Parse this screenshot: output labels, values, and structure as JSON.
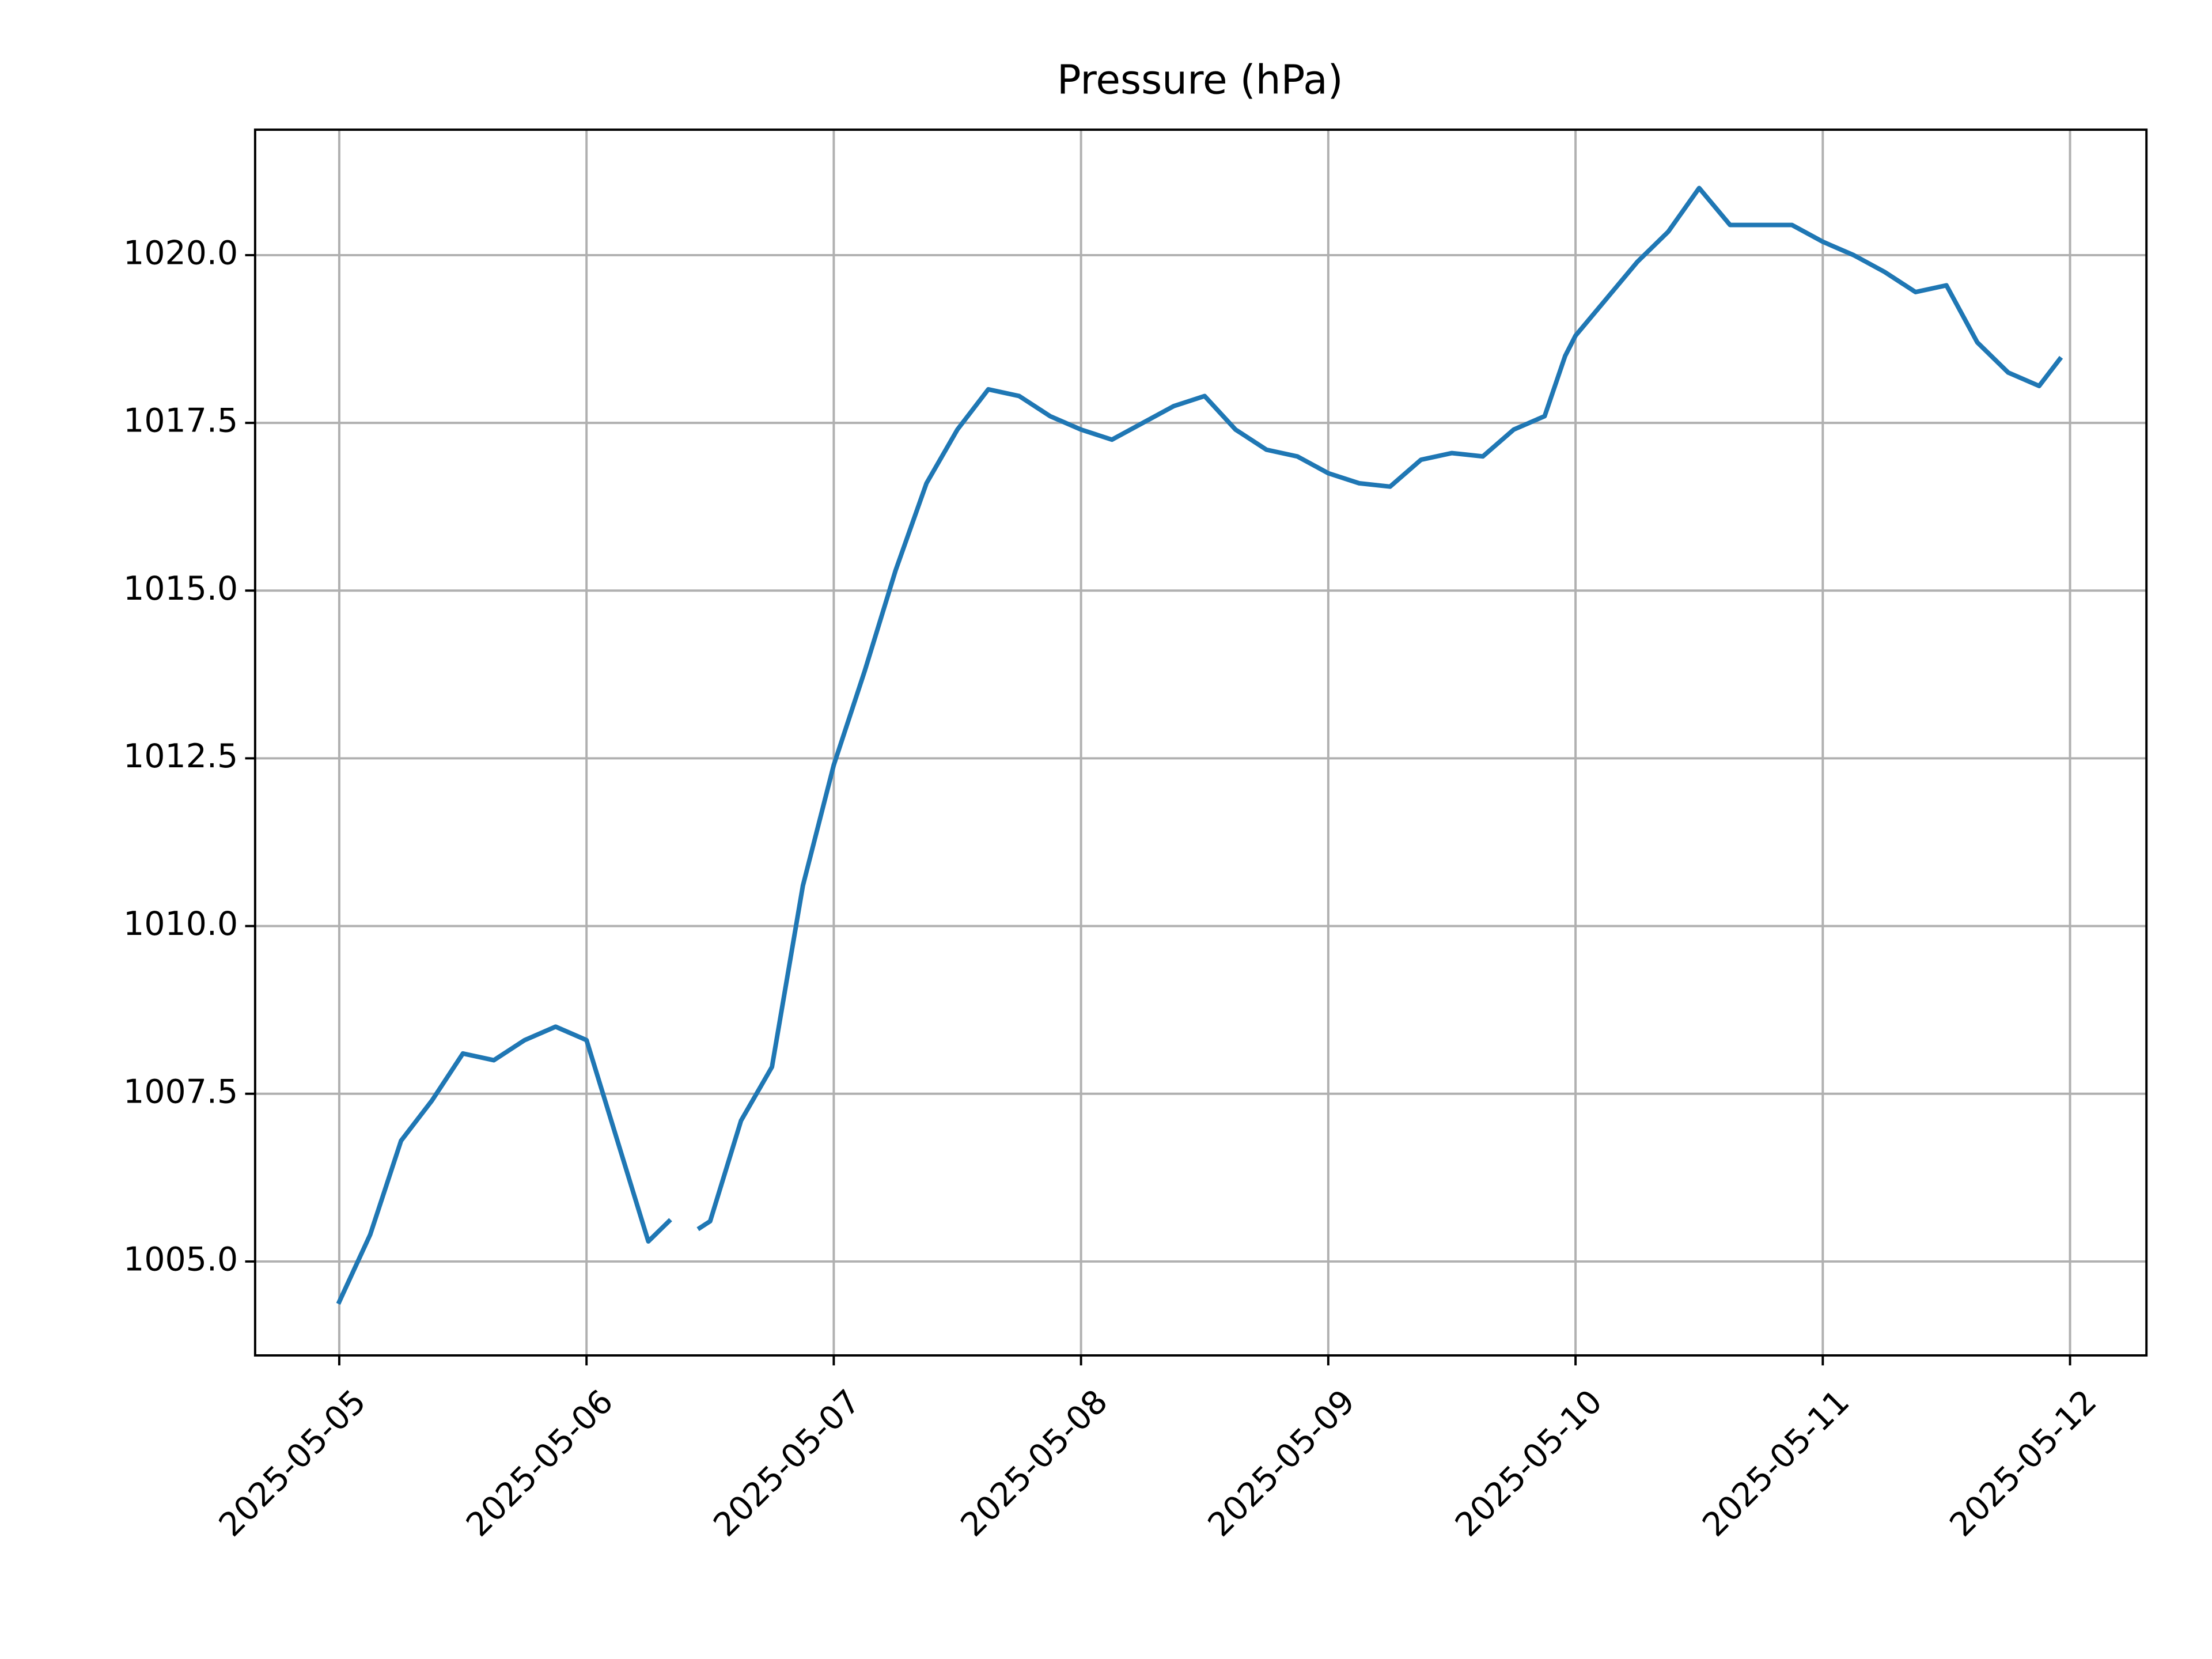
{
  "chart_data": {
    "type": "line",
    "title": "Pressure (hPa)",
    "color": "#1f77b4",
    "grid": true,
    "x": [
      "2025-05-05T00:00",
      "2025-05-05T03:00",
      "2025-05-05T06:00",
      "2025-05-05T09:00",
      "2025-05-05T12:00",
      "2025-05-05T15:00",
      "2025-05-05T18:00",
      "2025-05-05T21:00",
      "2025-05-06T00:00",
      "2025-05-06T03:00",
      "2025-05-06T06:00",
      "2025-05-06T08:00",
      "2025-05-06T09:00",
      "2025-05-06T11:00",
      "2025-05-06T12:00",
      "2025-05-06T15:00",
      "2025-05-06T18:00",
      "2025-05-06T21:00",
      "2025-05-07T00:00",
      "2025-05-07T03:00",
      "2025-05-07T06:00",
      "2025-05-07T09:00",
      "2025-05-07T12:00",
      "2025-05-07T15:00",
      "2025-05-07T18:00",
      "2025-05-07T21:00",
      "2025-05-08T00:00",
      "2025-05-08T03:00",
      "2025-05-08T06:00",
      "2025-05-08T09:00",
      "2025-05-08T12:00",
      "2025-05-08T15:00",
      "2025-05-08T18:00",
      "2025-05-08T21:00",
      "2025-05-09T00:00",
      "2025-05-09T03:00",
      "2025-05-09T06:00",
      "2025-05-09T09:00",
      "2025-05-09T12:00",
      "2025-05-09T15:00",
      "2025-05-09T18:00",
      "2025-05-09T21:00",
      "2025-05-09T23:00",
      "2025-05-10T00:00",
      "2025-05-10T03:00",
      "2025-05-10T06:00",
      "2025-05-10T09:00",
      "2025-05-10T12:00",
      "2025-05-10T15:00",
      "2025-05-10T18:00",
      "2025-05-10T21:00",
      "2025-05-11T00:00",
      "2025-05-11T03:00",
      "2025-05-11T06:00",
      "2025-05-11T09:00",
      "2025-05-11T12:00",
      "2025-05-11T15:00",
      "2025-05-11T18:00",
      "2025-05-11T21:00",
      "2025-05-11T23:00"
    ],
    "values": [
      1004.4,
      1005.4,
      1006.8,
      1007.4,
      1008.1,
      1008.0,
      1008.3,
      1008.5,
      1008.3,
      1006.8,
      1005.3,
      1005.6,
      null,
      1005.5,
      1005.6,
      1007.1,
      1007.9,
      1010.6,
      1012.4,
      1013.8,
      1015.3,
      1016.6,
      1017.4,
      1018.0,
      1017.9,
      1017.6,
      1017.4,
      1017.25,
      1017.5,
      1017.75,
      1017.9,
      1017.4,
      1017.1,
      1017.0,
      1016.75,
      1016.6,
      1016.55,
      1016.95,
      1017.05,
      1017.0,
      1017.4,
      1017.6,
      1018.5,
      1018.8,
      1019.35,
      1019.9,
      1020.35,
      1021.0,
      1020.45,
      1020.45,
      1020.45,
      1020.2,
      1020.0,
      1019.75,
      1019.45,
      1019.55,
      1018.7,
      1018.25,
      1018.05,
      1018.45
    ],
    "xlim": [
      "2025-05-04T15:50",
      "2025-05-12T07:25"
    ],
    "xticks": [
      "2025-05-05",
      "2025-05-06",
      "2025-05-07",
      "2025-05-08",
      "2025-05-09",
      "2025-05-10",
      "2025-05-11",
      "2025-05-12"
    ],
    "ylim": [
      1003.6,
      1021.87
    ],
    "yticks": [
      {
        "value": 1005,
        "label": "1005.0"
      },
      {
        "value": 1007.5,
        "label": "1007.5"
      },
      {
        "value": 1010,
        "label": "1010.0"
      },
      {
        "value": 1012.5,
        "label": "1012.5"
      },
      {
        "value": 1015,
        "label": "1015.0"
      },
      {
        "value": 1017.5,
        "label": "1017.5"
      },
      {
        "value": 1020,
        "label": "1020.0"
      }
    ]
  }
}
